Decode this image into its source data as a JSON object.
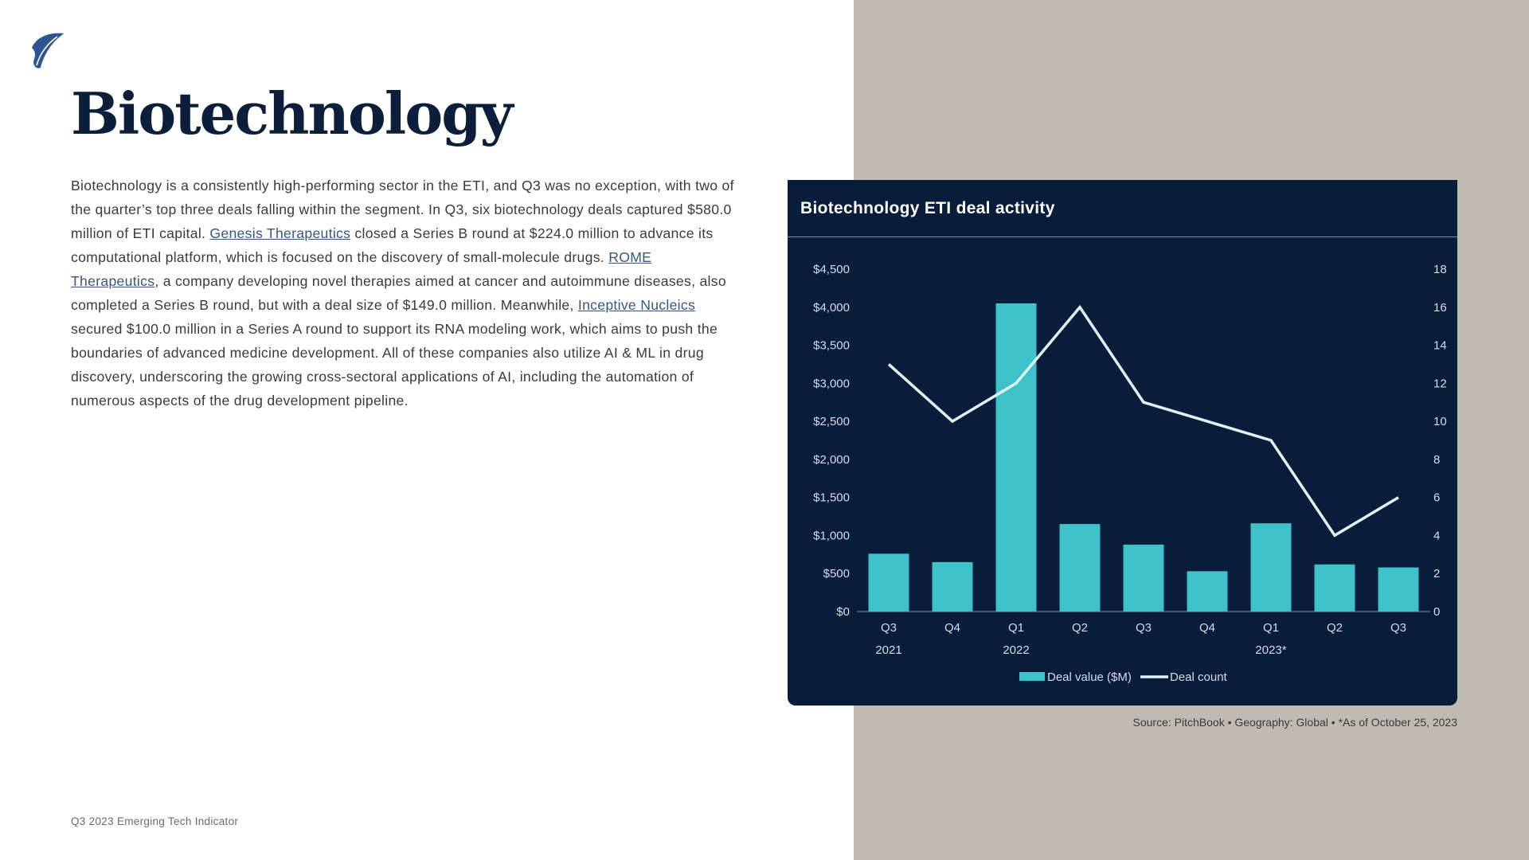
{
  "page": {
    "title": "Biotechnology",
    "footer": "Q3 2023 Emerging Tech Indicator"
  },
  "body": {
    "p1": "Biotechnology is a consistently high-performing sector in the ETI, and Q3 was no exception, with two of the quarter’s top three deals falling within the segment. In Q3, six biotechnology deals captured $580.0 million of ETI capital. ",
    "link1": "Genesis Therapeutics",
    "p2": " closed a Series B round at $224.0 million to advance its computational platform, which is focused on the discovery of small-molecule drugs. ",
    "link2": "ROME Therapeutics",
    "p3": ", a company developing novel therapies aimed at cancer and autoimmune diseases, also completed a Series B round, but with a deal size of $149.0 million. Meanwhile, ",
    "link3": "Inceptive Nucleics",
    "p4": " secured $100.0 million in a Series A round to support its RNA modeling work, which aims to push the boundaries of advanced medicine development. All of these companies also utilize AI & ML in drug discovery, underscoring the growing cross-sectoral applications of AI, including the automation of numerous aspects of the drug development pipeline."
  },
  "source": "Source: PitchBook  •  Geography: Global  •  *As of October 25, 2023",
  "colors": {
    "navy": "#071d39",
    "bar": "#3ec1c9",
    "line": "#dff4f8",
    "panel": "#c0bbb0"
  },
  "icons": {
    "logo": "sail-logo-icon"
  },
  "chart_data": {
    "type": "bar",
    "title": "Biotechnology ETI deal activity",
    "categories": [
      "Q3",
      "Q4",
      "Q1",
      "Q2",
      "Q3",
      "Q4",
      "Q1",
      "Q2",
      "Q3"
    ],
    "year_labels": [
      {
        "label": "2021",
        "index": 0
      },
      {
        "label": "2022",
        "index": 2
      },
      {
        "label": "2023*",
        "index": 6
      }
    ],
    "series": [
      {
        "name": "Deal value ($M)",
        "type": "bar",
        "axis": "left",
        "values": [
          760,
          650,
          4050,
          1150,
          880,
          530,
          1160,
          620,
          580
        ]
      },
      {
        "name": "Deal count",
        "type": "line",
        "axis": "right",
        "values": [
          13,
          10,
          12,
          16,
          11,
          10,
          9,
          4,
          6
        ]
      }
    ],
    "ylim_left": [
      0,
      4500
    ],
    "yticks_left": [
      "$0",
      "$500",
      "$1,000",
      "$1,500",
      "$2,000",
      "$2,500",
      "$3,000",
      "$3,500",
      "$4,000",
      "$4,500"
    ],
    "ylim_right": [
      0,
      18
    ],
    "yticks_right": [
      "0",
      "2",
      "4",
      "6",
      "8",
      "10",
      "12",
      "14",
      "16",
      "18"
    ],
    "grid": false,
    "legend_position": "bottom-center"
  }
}
